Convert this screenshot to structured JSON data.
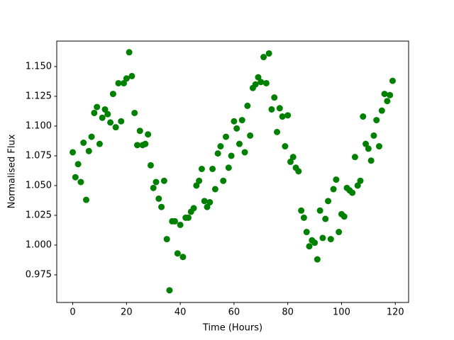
{
  "chart_data": {
    "type": "scatter",
    "x_label": "Time (Hours)",
    "y_label": "Normalised Flux",
    "color": "#008000",
    "x": [
      0,
      1,
      2,
      3,
      4,
      5,
      6,
      7,
      8,
      9,
      10,
      11,
      12,
      13,
      14,
      15,
      16,
      17,
      18,
      19,
      20,
      21,
      22,
      23,
      24,
      25,
      26,
      27,
      28,
      29,
      30,
      31,
      32,
      33,
      34,
      35,
      36,
      37,
      38,
      39,
      40,
      41,
      42,
      43,
      44,
      45,
      46,
      47,
      48,
      49,
      50,
      51,
      52,
      53,
      54,
      55,
      56,
      57,
      58,
      59,
      60,
      61,
      62,
      63,
      64,
      65,
      66,
      67,
      68,
      69,
      70,
      71,
      72,
      73,
      74,
      75,
      76,
      77,
      78,
      79,
      80,
      81,
      82,
      83,
      84,
      85,
      86,
      87,
      88,
      89,
      90,
      91,
      92,
      93,
      94,
      95,
      96,
      97,
      98,
      99,
      100,
      101,
      102,
      103,
      104,
      105,
      106,
      107,
      108,
      109,
      110,
      111,
      112,
      113,
      114,
      115,
      116,
      117,
      118,
      119
    ],
    "values": [
      1.078,
      1.057,
      1.068,
      1.053,
      1.086,
      1.038,
      1.079,
      1.091,
      1.111,
      1.116,
      1.085,
      1.107,
      1.114,
      1.11,
      1.103,
      1.127,
      1.099,
      1.136,
      1.104,
      1.136,
      1.14,
      1.162,
      1.142,
      1.111,
      1.084,
      1.096,
      1.084,
      1.085,
      1.093,
      1.067,
      1.048,
      1.053,
      1.039,
      1.032,
      1.054,
      1.005,
      0.962,
      1.02,
      1.02,
      0.993,
      1.017,
      0.99,
      1.023,
      1.023,
      1.028,
      1.031,
      1.05,
      1.054,
      1.064,
      1.037,
      1.032,
      1.036,
      1.064,
      1.047,
      1.077,
      1.083,
      1.054,
      1.091,
      1.065,
      1.075,
      1.104,
      1.098,
      1.085,
      1.105,
      1.078,
      1.117,
      1.092,
      1.132,
      1.135,
      1.141,
      1.137,
      1.158,
      1.136,
      1.161,
      1.114,
      1.124,
      1.095,
      1.115,
      1.108,
      1.083,
      1.109,
      1.07,
      1.074,
      1.065,
      1.062,
      1.029,
      1.023,
      1.011,
      0.999,
      1.004,
      1.002,
      0.988,
      1.029,
      1.006,
      1.022,
      1.037,
      1.005,
      1.047,
      1.055,
      1.011,
      1.026,
      1.024,
      1.048,
      1.046,
      1.044,
      1.074,
      1.05,
      1.054,
      1.108,
      1.085,
      1.081,
      1.071,
      1.092,
      1.105,
      1.083,
      1.113,
      1.127,
      1.121,
      1.126,
      1.138
    ],
    "xlim": [
      -5.95,
      124.95
    ],
    "ylim": [
      0.9518,
      1.1714
    ],
    "xticks": [
      0,
      20,
      40,
      60,
      80,
      100,
      120
    ],
    "yticks": [
      0.975,
      {
        "value": 1.0,
        "label": "1.000"
      },
      1.025,
      {
        "value": 1.05,
        "label": "1.050"
      },
      1.075,
      {
        "value": 1.1,
        "label": "1.100"
      },
      1.125,
      {
        "value": 1.15,
        "label": "1.150"
      }
    ]
  }
}
